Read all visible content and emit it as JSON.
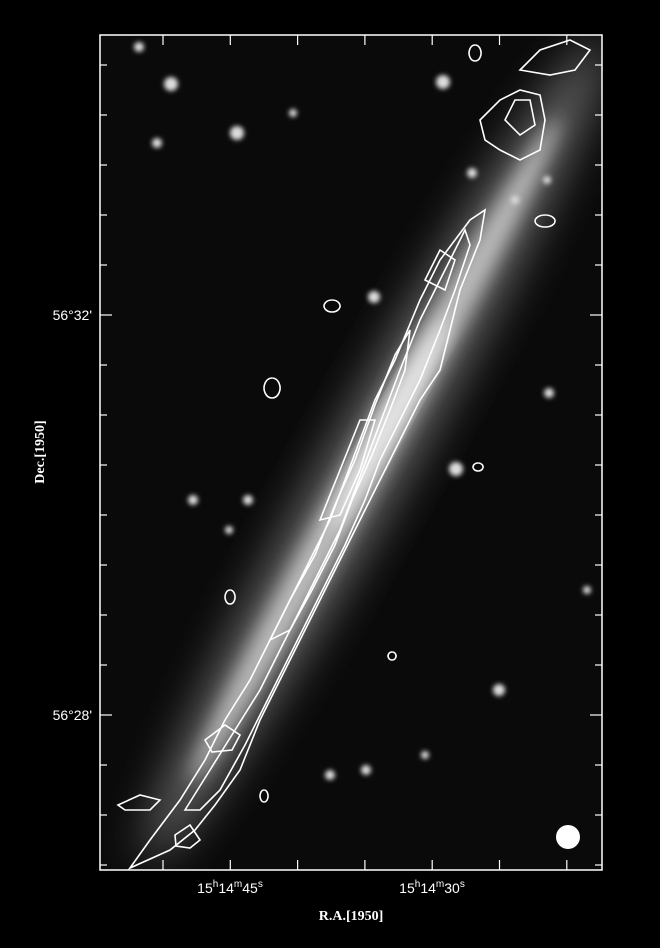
{
  "y_axis": {
    "label": "Dec.[1950]",
    "ticks": [
      "56°32'",
      "56°28'"
    ]
  },
  "x_axis": {
    "label": "R.A.[1950]",
    "ticks": [
      [
        "15",
        "h",
        "14",
        "m",
        "45",
        "s"
      ],
      [
        "15",
        "h",
        "14",
        "m",
        "30",
        "s"
      ]
    ]
  }
}
